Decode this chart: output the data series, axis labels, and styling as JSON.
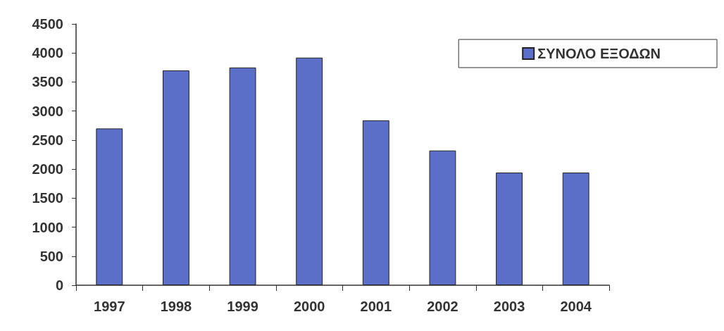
{
  "chart_data": {
    "type": "bar",
    "categories": [
      "1997",
      "1998",
      "1999",
      "2000",
      "2001",
      "2002",
      "2003",
      "2004"
    ],
    "series": [
      {
        "name": "ΣΥΝΟΛΟ ΕΞΟΔΩΝ",
        "color": "#5b6fc9",
        "values": [
          2700,
          3700,
          3750,
          3920,
          2840,
          2320,
          1940,
          1940
        ]
      }
    ],
    "ylim": [
      0,
      4500
    ],
    "yticks": [
      0,
      500,
      1000,
      1500,
      2000,
      2500,
      3000,
      3500,
      4000,
      4500
    ],
    "grid": false,
    "legend": "top right"
  }
}
